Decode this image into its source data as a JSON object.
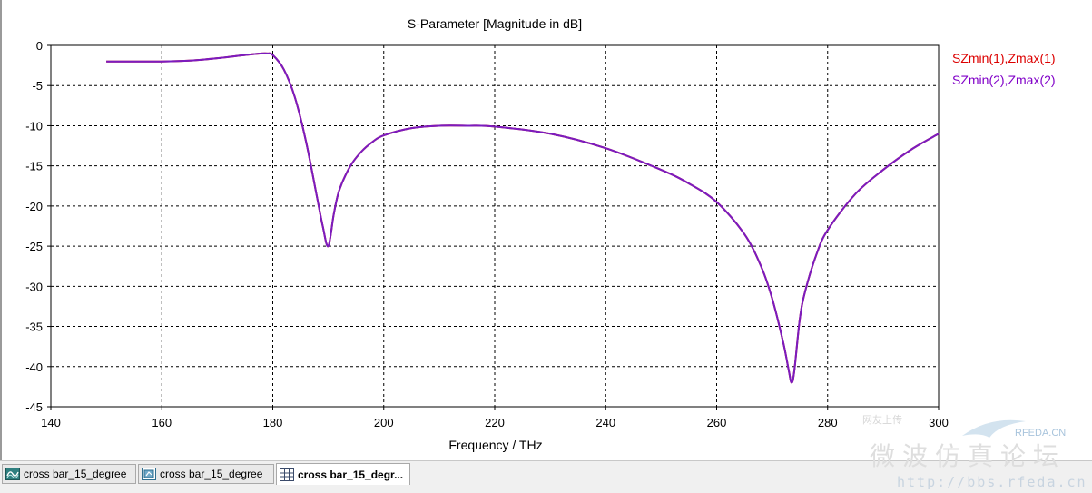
{
  "tabs": [
    {
      "label": "cross bar_15_degree",
      "icon": "line-chart-icon",
      "active": false
    },
    {
      "label": "cross bar_15_degree",
      "icon": "table-view-icon",
      "active": false
    },
    {
      "label": "cross bar_15_degr...",
      "icon": "grid-view-icon",
      "active": true
    }
  ],
  "watermark": {
    "small_text": "网友上传",
    "brand": "RFEDA.CN",
    "cn_text": "微波仿真论坛",
    "url": "http://bbs.rfeda.cn"
  },
  "colors": {
    "series1": "#dc0000",
    "series2": "#8000c8",
    "plot_line": "#7a1cc0"
  },
  "chart_data": {
    "type": "line",
    "title": "S-Parameter [Magnitude in dB]",
    "xlabel": "Frequency / THz",
    "ylabel": "",
    "xlim": [
      140,
      300
    ],
    "ylim": [
      -45,
      0
    ],
    "xticks": [
      140,
      160,
      180,
      200,
      220,
      240,
      260,
      280,
      300
    ],
    "yticks": [
      0,
      -5,
      -10,
      -15,
      -20,
      -25,
      -30,
      -35,
      -40,
      -45
    ],
    "grid": true,
    "legend_position": "top-right",
    "series": [
      {
        "name": "SZmin(1),Zmax(1)",
        "x": [
          150,
          155,
          160,
          165,
          170,
          175,
          178,
          179,
          180,
          182,
          184,
          186,
          188,
          189,
          190,
          191,
          192,
          194,
          196,
          198,
          200,
          205,
          210,
          215,
          220,
          230,
          240,
          250,
          255,
          260,
          265,
          268,
          270,
          272,
          273,
          273.5,
          274,
          275,
          276,
          278,
          280,
          285,
          290,
          295,
          300
        ],
        "y": [
          -2,
          -2,
          -2,
          -1.9,
          -1.6,
          -1.2,
          -1.0,
          -1.0,
          -1.2,
          -3.0,
          -6.5,
          -12,
          -19,
          -22.5,
          -25,
          -21,
          -18,
          -15,
          -13.2,
          -12,
          -11.2,
          -10.3,
          -10,
          -10,
          -10.1,
          -11,
          -12.8,
          -15.5,
          -17.2,
          -19.5,
          -23.5,
          -27.5,
          -31.5,
          -37,
          -40.5,
          -42,
          -40.5,
          -34,
          -30.5,
          -26,
          -23,
          -18.5,
          -15.5,
          -13,
          -11
        ]
      },
      {
        "name": "SZmin(2),Zmax(2)",
        "x": [
          150,
          155,
          160,
          165,
          170,
          175,
          178,
          179,
          180,
          182,
          184,
          186,
          188,
          189,
          190,
          191,
          192,
          194,
          196,
          198,
          200,
          205,
          210,
          215,
          220,
          230,
          240,
          250,
          255,
          260,
          265,
          268,
          270,
          272,
          273,
          273.5,
          274,
          275,
          276,
          278,
          280,
          285,
          290,
          295,
          300
        ],
        "y": [
          -2,
          -2,
          -2,
          -1.9,
          -1.6,
          -1.2,
          -1.0,
          -1.0,
          -1.2,
          -3.0,
          -6.5,
          -12,
          -19,
          -22.5,
          -25,
          -21,
          -18,
          -15,
          -13.2,
          -12,
          -11.2,
          -10.3,
          -10,
          -10,
          -10.1,
          -11,
          -12.8,
          -15.5,
          -17.2,
          -19.5,
          -23.5,
          -27.5,
          -31.5,
          -37,
          -40.5,
          -42,
          -40.5,
          -34,
          -30.5,
          -26,
          -23,
          -18.5,
          -15.5,
          -13,
          -11
        ]
      }
    ]
  }
}
